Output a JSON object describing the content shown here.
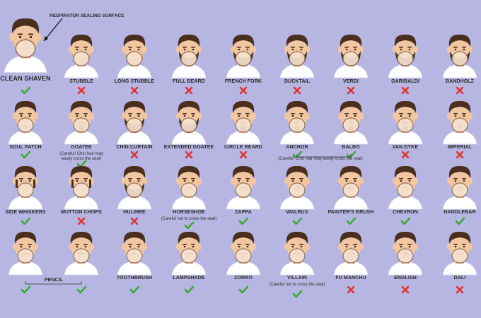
{
  "header_annotation": "RESPIRATOR SEALING SURFACE",
  "colors": {
    "background": "#b7b6e2",
    "skin": "#f2c6a0",
    "hair": "#4a2e1e",
    "shirt": "#ffffff",
    "mask": "#f6e2cf",
    "ok": "#3aaa35",
    "bad": "#e0302e"
  },
  "icons": {
    "ok": "checkmark-icon",
    "bad": "cross-icon"
  },
  "rows": [
    [
      {
        "name": "CLEAN SHAVEN",
        "ok": true
      },
      {
        "name": "STUBBLE",
        "ok": false
      },
      {
        "name": "LONG STUBBLE",
        "ok": false
      },
      {
        "name": "FULL BEARD",
        "ok": false
      },
      {
        "name": "FRENCH FORK",
        "ok": false
      },
      {
        "name": "DUCKTAIL",
        "ok": false
      },
      {
        "name": "VERDI",
        "ok": false
      },
      {
        "name": "GARIBALDI",
        "ok": false
      },
      {
        "name": "BANDHOLZ",
        "ok": false
      }
    ],
    [
      {
        "name": "SOUL PATCH",
        "ok": true
      },
      {
        "name": "GOATEE",
        "ok": true,
        "note": "(Careful! Chin hair may easily cross the seal)"
      },
      {
        "name": "CHIN CURTAIN",
        "ok": false
      },
      {
        "name": "EXTENDED GOATEE",
        "ok": false
      },
      {
        "name": "CIRCLE BEARD",
        "ok": false
      },
      {
        "name": "ANCHOR",
        "ok": true
      },
      {
        "name": "BALBO",
        "ok": true
      },
      {
        "name": "VAN DYKE",
        "ok": false
      },
      {
        "name": "IMPERIAL",
        "ok": false
      }
    ],
    [
      {
        "name": "SIDE WHISKERS",
        "ok": true
      },
      {
        "name": "MUTTON CHOPS",
        "ok": false
      },
      {
        "name": "HULIHEE",
        "ok": false
      },
      {
        "name": "HORSESHOE",
        "ok": true,
        "note": "(Careful not to cross the seal)"
      },
      {
        "name": "ZAPPA",
        "ok": true
      },
      {
        "name": "WALRUS",
        "ok": true
      },
      {
        "name": "PAINTER'S BRUSH",
        "ok": true
      },
      {
        "name": "CHEVRON",
        "ok": true
      },
      {
        "name": "HANDLEBAR",
        "ok": true
      }
    ],
    [
      {
        "name": "",
        "ok": true
      },
      {
        "name": "",
        "ok": true
      },
      {
        "name": "TOOTHBRUSH",
        "ok": true
      },
      {
        "name": "LAMPSHADE",
        "ok": true
      },
      {
        "name": "ZORRO",
        "ok": true
      },
      {
        "name": "VILLAIN",
        "ok": true,
        "note": "(Careful not to cross the seal)"
      },
      {
        "name": "FU MANCHU",
        "ok": false
      },
      {
        "name": "ENGLISH",
        "ok": false
      },
      {
        "name": "DALI",
        "ok": false
      }
    ]
  ],
  "group_labels": {
    "anchor_balbo_note": "(Careful! Chin hair may easily cross the seal)",
    "pencil": "PENCIL"
  }
}
